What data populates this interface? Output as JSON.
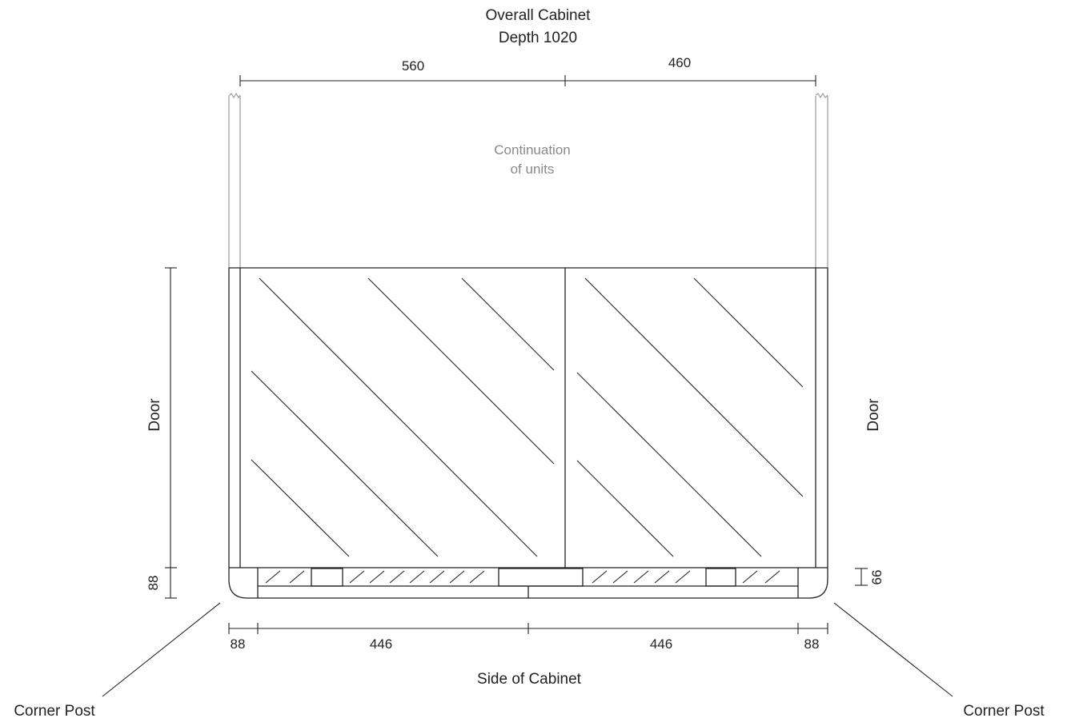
{
  "title": {
    "line1": "Overall Cabinet",
    "line2": "Depth 1020"
  },
  "top_dimensions": {
    "left": "560",
    "right": "460"
  },
  "continuation_note": {
    "line1": "Continuation",
    "line2": "of units"
  },
  "side_labels": {
    "left_door": "Door",
    "right_door": "Door",
    "left_base": "88",
    "right_base": "66"
  },
  "bottom_dimensions": [
    "88",
    "446",
    "446",
    "88"
  ],
  "bottom_caption": "Side of Cabinet",
  "callouts": {
    "left": "Corner Post",
    "right": "Corner Post"
  },
  "colors": {
    "line": "#222222",
    "continuation_line": "#9a9a9a",
    "note_text": "#8a8a8a"
  }
}
